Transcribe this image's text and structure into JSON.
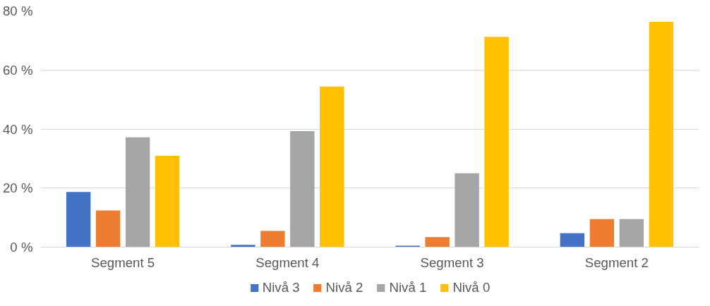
{
  "chart_data": {
    "type": "bar",
    "categories": [
      "Segment 5",
      "Segment 4",
      "Segment 3",
      "Segment 2"
    ],
    "series": [
      {
        "name": "Nivå 3",
        "color": "#4472c4",
        "values": [
          18.7,
          0.8,
          0.5,
          4.7
        ]
      },
      {
        "name": "Nivå 2",
        "color": "#ed7d31",
        "values": [
          12.4,
          5.5,
          3.4,
          9.5
        ]
      },
      {
        "name": "Nivå 1",
        "color": "#a5a5a5",
        "values": [
          37.2,
          39.3,
          25.0,
          9.5
        ]
      },
      {
        "name": "Nivå 0",
        "color": "#ffc000",
        "values": [
          30.9,
          54.4,
          71.2,
          76.3
        ]
      }
    ],
    "ylim": [
      0,
      80
    ],
    "yticks": [
      {
        "value": 0,
        "label": "0 %"
      },
      {
        "value": 20,
        "label": "20 %"
      },
      {
        "value": 40,
        "label": "40 %"
      },
      {
        "value": 60,
        "label": "60 %"
      },
      {
        "value": 80,
        "label": "80 %"
      }
    ],
    "grid": "y",
    "legend": "bottom"
  }
}
